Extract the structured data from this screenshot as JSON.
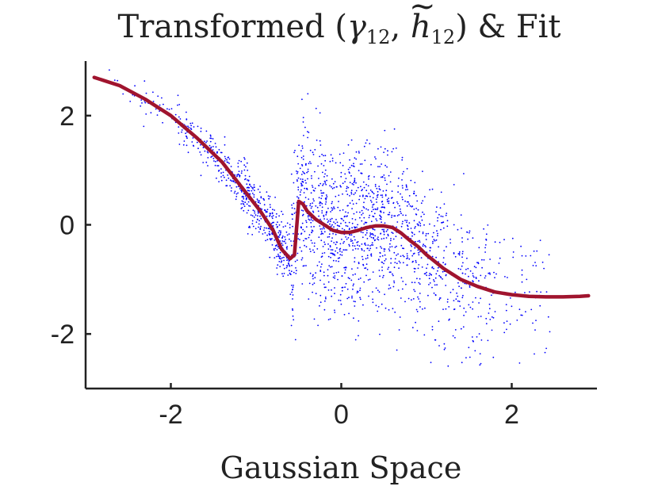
{
  "chart_data": {
    "type": "scatter",
    "title": {
      "prefix": "Transformed (",
      "gamma": "γ",
      "gamma_sub": "12",
      "sep": ", ",
      "h": "h",
      "tilde": "~",
      "h_sub": "12",
      "suffix": ") & Fit"
    },
    "xlabel": "Gaussian Space",
    "ylabel": "",
    "xlim": [
      -3,
      3
    ],
    "ylim": [
      -3,
      3
    ],
    "x_ticks": [
      -2,
      0,
      2
    ],
    "y_ticks": [
      -2,
      0,
      2
    ],
    "x_tick_labels": [
      "-2",
      "0",
      "2"
    ],
    "y_tick_labels": [
      "-2",
      "0",
      "2"
    ],
    "grid": false,
    "legend": "none",
    "series": [
      {
        "type": "scatter",
        "color": "#0000ff",
        "count": 2000,
        "seed": 12
      },
      {
        "type": "line",
        "color": "#a0142e",
        "x": [
          -2.9,
          -2.6,
          -2.3,
          -2.0,
          -1.7,
          -1.4,
          -1.1,
          -0.95,
          -0.8,
          -0.7,
          -0.6,
          -0.55,
          -0.5,
          -0.45,
          -0.4,
          -0.3,
          -0.2,
          -0.1,
          0.0,
          0.1,
          0.2,
          0.3,
          0.4,
          0.5,
          0.6,
          0.7,
          0.8,
          0.9,
          1.0,
          1.2,
          1.4,
          1.6,
          1.8,
          2.0,
          2.2,
          2.4,
          2.6,
          2.8,
          2.9
        ],
        "y": [
          2.7,
          2.55,
          2.3,
          2.0,
          1.6,
          1.15,
          0.55,
          0.25,
          -0.1,
          -0.45,
          -0.62,
          -0.55,
          0.43,
          0.38,
          0.25,
          0.1,
          0.0,
          -0.1,
          -0.14,
          -0.14,
          -0.1,
          -0.05,
          -0.02,
          -0.02,
          -0.05,
          -0.15,
          -0.28,
          -0.4,
          -0.55,
          -0.8,
          -1.0,
          -1.13,
          -1.23,
          -1.28,
          -1.31,
          -1.32,
          -1.32,
          -1.31,
          -1.3
        ]
      }
    ]
  }
}
